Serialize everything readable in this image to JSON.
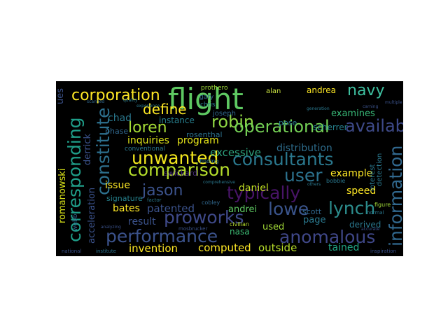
{
  "word_cloud": {
    "background": "#000000",
    "palette": [
      "#440154",
      "#3b528b",
      "#21918c",
      "#5ec962",
      "#fde725"
    ],
    "words": [
      {
        "text": "flight",
        "color": "#5ec962"
      },
      {
        "text": "corporation",
        "color": "#fde725"
      },
      {
        "text": "navy",
        "color": "#3ec0a0"
      },
      {
        "text": "andrea",
        "color": "#fde725"
      },
      {
        "text": "alan",
        "color": "#c8e040"
      },
      {
        "text": "prothero",
        "color": "#a0da39"
      },
      {
        "text": "define",
        "color": "#fde725"
      },
      {
        "text": "robin",
        "color": "#8fd744"
      },
      {
        "text": "available",
        "color": "#3e4a89"
      },
      {
        "text": "operational",
        "color": "#74d055"
      },
      {
        "text": "loren",
        "color": "#a5db36"
      },
      {
        "text": "corresponding",
        "color": "#1f9e89"
      },
      {
        "text": "constitute",
        "color": "#2d708e"
      },
      {
        "text": "information",
        "color": "#31688e"
      },
      {
        "text": "unwanted",
        "color": "#f1e51d"
      },
      {
        "text": "consultants",
        "color": "#2a788e"
      },
      {
        "text": "comparison",
        "color": "#b5de2b"
      },
      {
        "text": "user",
        "color": "#2c728e"
      },
      {
        "text": "typically",
        "color": "#481467"
      },
      {
        "text": "jason",
        "color": "#3b528b"
      },
      {
        "text": "lynch",
        "color": "#2c8c8c"
      },
      {
        "text": "lowe",
        "color": "#3a548c"
      },
      {
        "text": "proworks",
        "color": "#3e4989"
      },
      {
        "text": "performance",
        "color": "#3b528b"
      },
      {
        "text": "anomalous",
        "color": "#3f4788"
      },
      {
        "text": "outside",
        "color": "#b8de29"
      },
      {
        "text": "invention",
        "color": "#fde725"
      },
      {
        "text": "computed",
        "color": "#fde725"
      },
      {
        "text": "tained",
        "color": "#21a685"
      },
      {
        "text": "used",
        "color": "#a2da37"
      },
      {
        "text": "nasa",
        "color": "#3dbc74"
      },
      {
        "text": "page",
        "color": "#2a788e"
      },
      {
        "text": "speed",
        "color": "#fde725"
      },
      {
        "text": "example",
        "color": "#fde725"
      },
      {
        "text": "excessive",
        "color": "#2ea37e"
      },
      {
        "text": "distribution",
        "color": "#2e6e8e"
      },
      {
        "text": "inquiries",
        "color": "#dde318"
      },
      {
        "text": "program",
        "color": "#e5e419"
      },
      {
        "text": "instance",
        "color": "#277f8e"
      },
      {
        "text": "chad",
        "color": "#2a788e"
      },
      {
        "text": "examines",
        "color": "#38b977"
      },
      {
        "text": "scherrer",
        "color": "#26828e"
      },
      {
        "text": "pose",
        "color": "#2a788e"
      },
      {
        "text": "joseph",
        "color": "#31688e"
      },
      {
        "text": "rosenthal",
        "color": "#2c728e"
      },
      {
        "text": "patented",
        "color": "#3b528b"
      },
      {
        "text": "bates",
        "color": "#fde725"
      },
      {
        "text": "result",
        "color": "#3b528b"
      },
      {
        "text": "signature",
        "color": "#26828e"
      },
      {
        "text": "issue",
        "color": "#fde725"
      },
      {
        "text": "swickard",
        "color": "#472d7b"
      },
      {
        "text": "andrei",
        "color": "#5ec962"
      },
      {
        "text": "scott",
        "color": "#31688e"
      },
      {
        "text": "daniel",
        "color": "#c2df23"
      },
      {
        "text": "derived",
        "color": "#2a788e"
      },
      {
        "text": "romanowski",
        "color": "#d8e219"
      },
      {
        "text": "acceleration",
        "color": "#3b528b"
      },
      {
        "text": "derrick",
        "color": "#3b528b"
      },
      {
        "text": "webb",
        "color": "#31688e"
      },
      {
        "text": "conventional",
        "color": "#2a788e"
      },
      {
        "text": "phase",
        "color": "#31688e"
      },
      {
        "text": "interest",
        "color": "#2a788e"
      },
      {
        "text": "detection",
        "color": "#2a788e"
      },
      {
        "text": "civilian",
        "color": "#b5de2b"
      },
      {
        "text": "ues",
        "color": "#3b528b"
      },
      {
        "text": "finding",
        "color": "#2a788e"
      },
      {
        "text": "mosbrucker",
        "color": "#3b528b"
      },
      {
        "text": "national",
        "color": "#3b528b"
      },
      {
        "text": "institute",
        "color": "#2c728e"
      },
      {
        "text": "figure",
        "color": "#a0da39"
      },
      {
        "text": "normal",
        "color": "#2a788e"
      },
      {
        "text": "inspiration",
        "color": "#3b528b"
      },
      {
        "text": "multiple",
        "color": "#3b528b"
      },
      {
        "text": "experience",
        "color": "#2a788e"
      },
      {
        "text": "quality",
        "color": "#2a788e"
      },
      {
        "text": "scanned",
        "color": "#31688e"
      },
      {
        "text": "carning",
        "color": "#3b528b"
      },
      {
        "text": "gary",
        "color": "#31688e"
      },
      {
        "text": "chris",
        "color": "#2a788e"
      },
      {
        "text": "bobbie",
        "color": "#2a788e"
      },
      {
        "text": "cobley",
        "color": "#31688e"
      },
      {
        "text": "accurate",
        "color": "#3b528b"
      },
      {
        "text": "generation",
        "color": "#2a788e"
      },
      {
        "text": "others",
        "color": "#2a788e"
      },
      {
        "text": "analyzing",
        "color": "#3b528b"
      },
      {
        "text": "factor",
        "color": "#2a788e"
      },
      {
        "text": "comprehensive",
        "color": "#2a788e"
      }
    ]
  }
}
